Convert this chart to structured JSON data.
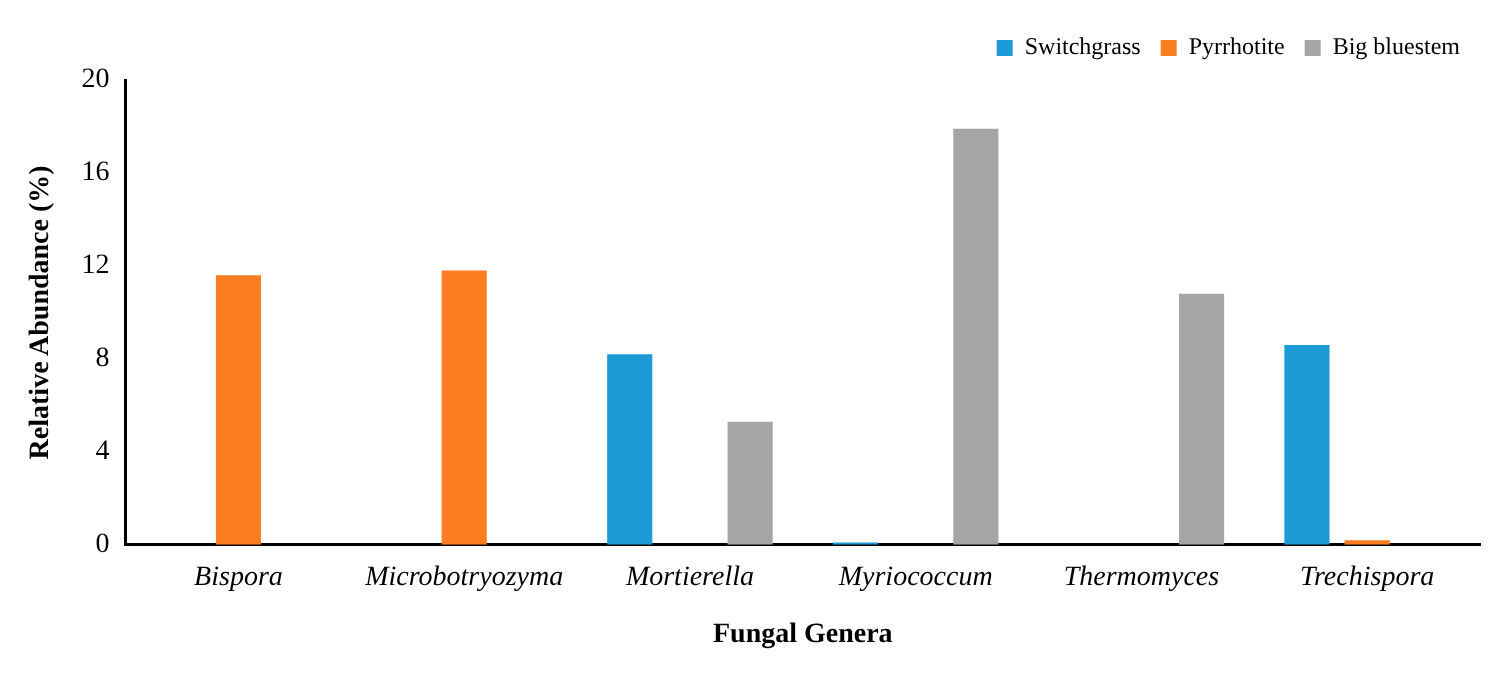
{
  "chart_data": {
    "type": "bar",
    "xlabel": "Fungal Genera",
    "ylabel": "Relative Abundance (%)",
    "categories": [
      "Bispora",
      "Microbotryozyma",
      "Mortierella",
      "Myriococcum",
      "Thermomyces",
      "Trechispora"
    ],
    "series": [
      {
        "name": "Switchgrass",
        "color": "#1b9ad6",
        "values": [
          null,
          null,
          8.2,
          0.1,
          null,
          8.6
        ]
      },
      {
        "name": "Pyrrhotite",
        "color": "#fa7d22",
        "values": [
          11.6,
          11.8,
          null,
          null,
          null,
          0.2
        ]
      },
      {
        "name": "Big bluestem",
        "color": "#a5a5a5",
        "values": [
          null,
          null,
          5.3,
          17.9,
          10.8,
          null
        ]
      }
    ],
    "ylim": [
      0,
      20
    ],
    "yticks": [
      0,
      4,
      8,
      12,
      16,
      20
    ],
    "grid": false,
    "legend": "top right"
  }
}
